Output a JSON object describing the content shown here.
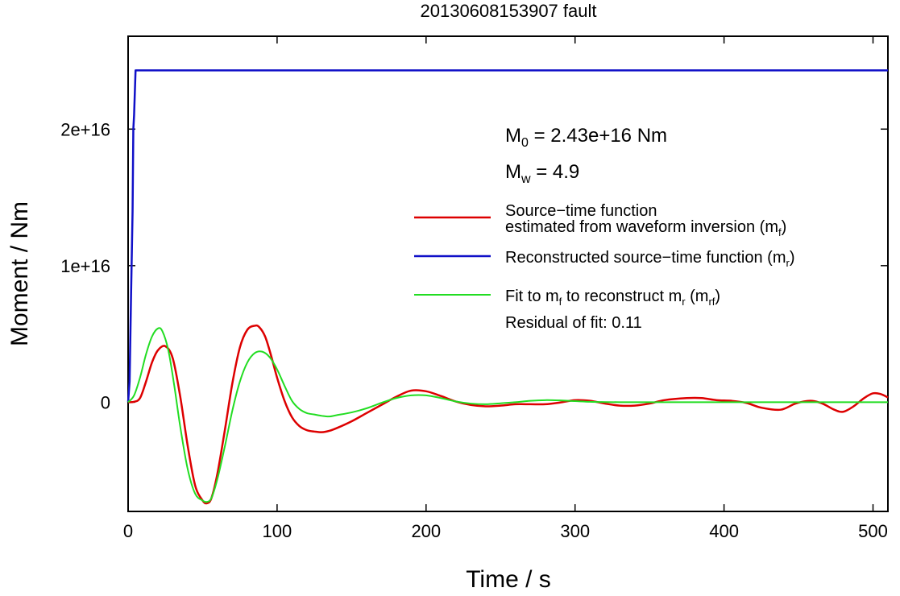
{
  "chart_data": {
    "type": "line",
    "title": "20130608153907 fault",
    "xlabel": "Time / s",
    "ylabel": "Moment / Nm",
    "xlim": [
      0,
      510
    ],
    "ylim": [
      -8000000000000000.0,
      2.68e+16
    ],
    "x_ticks": [
      0,
      100,
      200,
      300,
      400,
      500
    ],
    "x_tick_labels": [
      "0",
      "100",
      "200",
      "300",
      "400",
      "500"
    ],
    "y_ticks": [
      0,
      1e+16,
      2e+16
    ],
    "y_tick_labels": [
      "0",
      "1e+16",
      "2e+16"
    ],
    "grid": false,
    "legend_position": "right",
    "annotations": {
      "m0": {
        "base": "M",
        "sub": "0",
        "rest": " = 2.43e+16 Nm"
      },
      "mw": {
        "base": "M",
        "sub": "w",
        "rest": " = 4.9"
      },
      "residual": "Residual of fit: 0.11"
    },
    "series": [
      {
        "name": "Source−time function estimated from waveform inversion (mf)",
        "label_line1": "Source−time function",
        "label_line2_prefix": "estimated from waveform inversion (m",
        "label_line2_sub": "f",
        "label_line2_suffix": ")",
        "color": "#dd0000",
        "x": [
          0,
          4,
          8,
          12,
          16,
          20,
          25,
          30,
          35,
          40,
          45,
          50,
          53,
          56,
          60,
          65,
          70,
          75,
          80,
          85,
          88,
          92,
          96,
          100,
          105,
          110,
          115,
          120,
          125,
          130,
          135,
          140,
          150,
          160,
          170,
          180,
          190,
          200,
          210,
          220,
          230,
          240,
          250,
          260,
          270,
          280,
          290,
          300,
          310,
          320,
          330,
          340,
          350,
          360,
          375,
          385,
          395,
          405,
          415,
          425,
          438,
          448,
          458,
          466,
          474,
          480,
          487,
          494,
          500,
          505,
          510
        ],
        "y": [
          0,
          30000000000000.0,
          300000000000000.0,
          1500000000000000.0,
          2900000000000000.0,
          3800000000000000.0,
          4100000000000000.0,
          3200000000000000.0,
          400000000000000.0,
          -3200000000000000.0,
          -6100000000000000.0,
          -7200000000000000.0,
          -7400000000000000.0,
          -7000000000000000.0,
          -5200000000000000.0,
          -2000000000000000.0,
          1400000000000000.0,
          4000000000000000.0,
          5300000000000000.0,
          5600000000000000.0,
          5500000000000000.0,
          4800000000000000.0,
          3400000000000000.0,
          1800000000000000.0,
          100000000000000.0,
          -1100000000000000.0,
          -1750000000000000.0,
          -2050000000000000.0,
          -2150000000000000.0,
          -2200000000000000.0,
          -2100000000000000.0,
          -1900000000000000.0,
          -1400000000000000.0,
          -800000000000000.0,
          -200000000000000.0,
          400000000000000.0,
          850000000000000.0,
          800000000000000.0,
          450000000000000.0,
          50000000000000.0,
          -200000000000000.0,
          -300000000000000.0,
          -250000000000000.0,
          -150000000000000.0,
          -150000000000000.0,
          -150000000000000.0,
          -20000000000000.0,
          150000000000000.0,
          100000000000000.0,
          -100000000000000.0,
          -250000000000000.0,
          -250000000000000.0,
          -100000000000000.0,
          150000000000000.0,
          300000000000000.0,
          300000000000000.0,
          150000000000000.0,
          100000000000000.0,
          -50000000000000.0,
          -400000000000000.0,
          -550000000000000.0,
          -100000000000000.0,
          100000000000000.0,
          -100000000000000.0,
          -550000000000000.0,
          -700000000000000.0,
          -300000000000000.0,
          300000000000000.0,
          650000000000000.0,
          600000000000000.0,
          350000000000000.0
        ]
      },
      {
        "name": "Reconstructed source−time function (mr)",
        "label_prefix": "Reconstructed source−time function (m",
        "label_sub": "r",
        "label_suffix": ")",
        "color": "#1010c8",
        "x": [
          0,
          1,
          2,
          3,
          3.5,
          4,
          5,
          510
        ],
        "y": [
          0,
          1500000000000000.0,
          8000000000000000.0,
          1.4e+16,
          2e+16,
          2.1e+16,
          2.43e+16,
          2.43e+16
        ]
      },
      {
        "name": "Fit to mf to reconstruct mr (mrf)",
        "label_prefix1": "Fit to m",
        "label_sub1": "f",
        "label_mid": " to reconstruct m",
        "label_sub2": "r",
        "label_mid2": " (m",
        "label_sub3": "rf",
        "label_suffix": ")",
        "color": "#22dd22",
        "x": [
          0,
          4,
          8,
          12,
          16,
          20,
          23,
          27,
          31,
          35,
          40,
          45,
          50,
          53,
          56,
          60,
          65,
          70,
          75,
          80,
          85,
          90,
          95,
          100,
          105,
          110,
          115,
          120,
          125,
          130,
          135,
          140,
          150,
          160,
          170,
          180,
          190,
          200,
          210,
          220,
          230,
          240,
          250,
          260,
          270,
          280,
          290,
          300,
          310,
          320,
          330,
          340,
          350,
          360,
          380,
          400,
          420,
          440,
          460,
          480,
          500,
          510
        ],
        "y": [
          0,
          500000000000000.0,
          1800000000000000.0,
          3500000000000000.0,
          4800000000000000.0,
          5400000000000000.0,
          5200000000000000.0,
          3800000000000000.0,
          1200000000000000.0,
          -1800000000000000.0,
          -4900000000000000.0,
          -6700000000000000.0,
          -7200000000000000.0,
          -7300000000000000.0,
          -7000000000000000.0,
          -5600000000000000.0,
          -3200000000000000.0,
          -600000000000000.0,
          1500000000000000.0,
          2900000000000000.0,
          3600000000000000.0,
          3700000000000000.0,
          3300000000000000.0,
          2400000000000000.0,
          1200000000000000.0,
          100000000000000.0,
          -500000000000000.0,
          -800000000000000.0,
          -900000000000000.0,
          -1000000000000000.0,
          -1050000000000000.0,
          -950000000000000.0,
          -750000000000000.0,
          -450000000000000.0,
          -50000000000000.0,
          300000000000000.0,
          500000000000000.0,
          500000000000000.0,
          300000000000000.0,
          50000000000000.0,
          -100000000000000.0,
          -150000000000000.0,
          -80000000000000.0,
          0,
          100000000000000.0,
          150000000000000.0,
          130000000000000.0,
          80000000000000.0,
          30000000000000.0,
          10000000000000.0,
          0,
          0,
          0,
          0,
          0,
          0,
          0,
          0,
          0,
          0,
          0,
          0
        ]
      }
    ]
  }
}
